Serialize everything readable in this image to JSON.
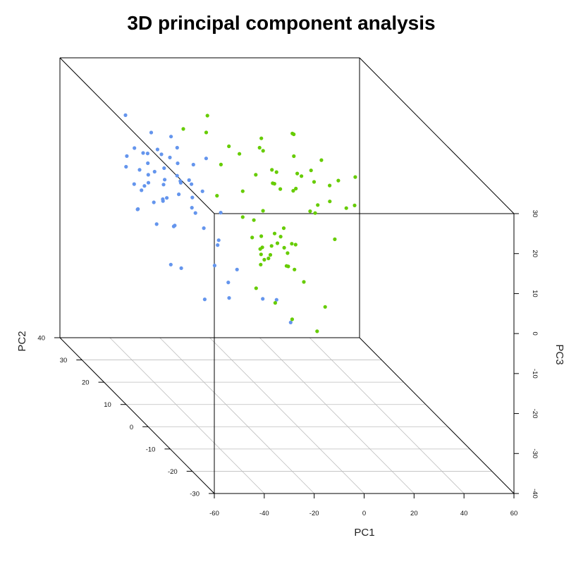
{
  "chart_data": {
    "type": "scatter",
    "title": "3D principal component analysis",
    "axes": {
      "x": {
        "label": "PC1",
        "range": [
          -60,
          60
        ],
        "ticks": [
          -60,
          -40,
          -20,
          0,
          20,
          40,
          60
        ],
        "tick_labels": [
          "-60",
          "-40",
          "-20",
          "0",
          "20",
          "40",
          "60"
        ]
      },
      "y": {
        "label": "PC2",
        "range": [
          -30,
          40
        ],
        "ticks": [
          -30,
          -20,
          -10,
          0,
          10,
          20,
          30,
          40
        ],
        "tick_labels": [
          "-30",
          "-20",
          "-10",
          "0",
          "10",
          "20",
          "30",
          "40"
        ]
      },
      "z": {
        "label": "PC3",
        "range": [
          -40,
          30
        ],
        "ticks": [
          -40,
          -30,
          -20,
          -10,
          0,
          10,
          20,
          30
        ],
        "tick_labels": [
          "-40",
          "-30",
          "-20",
          "-10",
          "0",
          "10",
          "20",
          "30"
        ]
      }
    },
    "grid": true,
    "series": [
      {
        "color": "#6495ED",
        "points": [
          {
            "x": -45,
            "y": 10,
            "z": 15
          },
          {
            "x": -43,
            "y": 12,
            "z": 18
          },
          {
            "x": -47,
            "y": 8,
            "z": 12
          },
          {
            "x": -44,
            "y": 5,
            "z": 20
          },
          {
            "x": -41,
            "y": 14,
            "z": 14
          },
          {
            "x": -48,
            "y": 11,
            "z": 10
          },
          {
            "x": -46,
            "y": 16,
            "z": 17
          },
          {
            "x": -42,
            "y": 7,
            "z": 22
          },
          {
            "x": -39,
            "y": 9,
            "z": 16
          },
          {
            "x": -50,
            "y": 13,
            "z": 13
          },
          {
            "x": -44,
            "y": 18,
            "z": 11
          },
          {
            "x": -40,
            "y": 3,
            "z": 19
          },
          {
            "x": -46,
            "y": 6,
            "z": 24
          },
          {
            "x": -43,
            "y": 15,
            "z": 21
          },
          {
            "x": -38,
            "y": 11,
            "z": 12
          },
          {
            "x": -49,
            "y": 4,
            "z": 15
          },
          {
            "x": -45,
            "y": 20,
            "z": 8
          },
          {
            "x": -41,
            "y": 1,
            "z": 25
          },
          {
            "x": -47,
            "y": 17,
            "z": 19
          },
          {
            "x": -37,
            "y": 6,
            "z": 14
          },
          {
            "x": -52,
            "y": 9,
            "z": 18
          },
          {
            "x": -44,
            "y": 22,
            "z": 12
          },
          {
            "x": -40,
            "y": -2,
            "z": 20
          },
          {
            "x": -48,
            "y": 2,
            "z": 9
          },
          {
            "x": -42,
            "y": 19,
            "z": 23
          },
          {
            "x": -46,
            "y": -4,
            "z": 17
          },
          {
            "x": -39,
            "y": 24,
            "z": 15
          },
          {
            "x": -51,
            "y": 15,
            "z": 6
          },
          {
            "x": -43,
            "y": -6,
            "z": 13
          },
          {
            "x": -36,
            "y": 14,
            "z": 22
          },
          {
            "x": -53,
            "y": 5,
            "z": 21
          },
          {
            "x": -45,
            "y": 27,
            "z": 10
          },
          {
            "x": -38,
            "y": -8,
            "z": 18
          },
          {
            "x": -50,
            "y": 21,
            "z": 16
          },
          {
            "x": -41,
            "y": -10,
            "z": 11
          },
          {
            "x": -34,
            "y": 8,
            "z": 9
          },
          {
            "x": -55,
            "y": 12,
            "z": 14
          },
          {
            "x": -47,
            "y": 25,
            "z": 24
          },
          {
            "x": -35,
            "y": 2,
            "z": 26
          },
          {
            "x": -44,
            "y": -12,
            "z": 7
          },
          {
            "x": -40,
            "y": 16,
            "z": 8
          },
          {
            "x": -48,
            "y": -1,
            "z": 22
          },
          {
            "x": -42,
            "y": 10,
            "z": 27
          },
          {
            "x": -46,
            "y": 12,
            "z": 4
          },
          {
            "x": -37,
            "y": 20,
            "z": 17
          },
          {
            "x": -52,
            "y": -3,
            "z": 12
          },
          {
            "x": -33,
            "y": 12,
            "z": 15
          },
          {
            "x": -45,
            "y": -15,
            "z": 15
          },
          {
            "x": -57,
            "y": 8,
            "z": 10
          },
          {
            "x": -39,
            "y": 30,
            "z": 13
          },
          {
            "x": -35,
            "y": -12,
            "z": 6
          },
          {
            "x": -30,
            "y": -18,
            "z": 2
          },
          {
            "x": -28,
            "y": -22,
            "z": 4
          },
          {
            "x": -58,
            "y": -8,
            "z": 5
          },
          {
            "x": -60,
            "y": -15,
            "z": 8
          },
          {
            "x": -55,
            "y": -20,
            "z": 3
          },
          {
            "x": -25,
            "y": -25,
            "z": 0
          },
          {
            "x": -32,
            "y": -5,
            "z": -5
          },
          {
            "x": -50,
            "y": -25,
            "z": 10
          }
        ]
      },
      {
        "color": "#66CC00",
        "points": [
          {
            "x": -15,
            "y": -5,
            "z": 8
          },
          {
            "x": -12,
            "y": -3,
            "z": 10
          },
          {
            "x": -18,
            "y": -7,
            "z": 6
          },
          {
            "x": -14,
            "y": -8,
            "z": 12
          },
          {
            "x": -10,
            "y": -2,
            "z": 7
          },
          {
            "x": -17,
            "y": -4,
            "z": 4
          },
          {
            "x": -13,
            "y": -10,
            "z": 9
          },
          {
            "x": -20,
            "y": -6,
            "z": 11
          },
          {
            "x": -11,
            "y": -6,
            "z": 13
          },
          {
            "x": -16,
            "y": -1,
            "z": 5
          },
          {
            "x": -19,
            "y": -9,
            "z": 8
          },
          {
            "x": -9,
            "y": -5,
            "z": 3
          },
          {
            "x": -14,
            "y": 0,
            "z": 14
          },
          {
            "x": -21,
            "y": -3,
            "z": 9
          },
          {
            "x": -12,
            "y": -12,
            "z": 6
          },
          {
            "x": -8,
            "y": -8,
            "z": 10
          },
          {
            "x": -17,
            "y": -13,
            "z": 12
          },
          {
            "x": -22,
            "y": -8,
            "z": 5
          },
          {
            "x": -15,
            "y": 3,
            "z": 10
          },
          {
            "x": -10,
            "y": -14,
            "z": 4
          },
          {
            "x": -23,
            "y": -1,
            "z": 13
          },
          {
            "x": -13,
            "y": 2,
            "z": 2
          },
          {
            "x": -6,
            "y": -4,
            "z": 8
          },
          {
            "x": -18,
            "y": -16,
            "z": 9
          },
          {
            "x": -24,
            "y": -11,
            "z": 11
          },
          {
            "x": -5,
            "y": 5,
            "z": 18
          },
          {
            "x": 0,
            "y": 8,
            "z": 15
          },
          {
            "x": 5,
            "y": 6,
            "z": 20
          },
          {
            "x": 2,
            "y": 12,
            "z": 17
          },
          {
            "x": 8,
            "y": 10,
            "z": 14
          },
          {
            "x": -3,
            "y": 14,
            "z": 22
          },
          {
            "x": 10,
            "y": 4,
            "z": 19
          },
          {
            "x": 4,
            "y": 16,
            "z": 12
          },
          {
            "x": -6,
            "y": 9,
            "z": 24
          },
          {
            "x": 12,
            "y": 12,
            "z": 16
          },
          {
            "x": 7,
            "y": 2,
            "z": 23
          },
          {
            "x": -1,
            "y": 18,
            "z": 13
          },
          {
            "x": 15,
            "y": 8,
            "z": 11
          },
          {
            "x": 3,
            "y": 20,
            "z": 21
          },
          {
            "x": 11,
            "y": 15,
            "z": 25
          },
          {
            "x": -8,
            "y": 16,
            "z": 10
          },
          {
            "x": 18,
            "y": 6,
            "z": 17
          },
          {
            "x": 6,
            "y": -1,
            "z": 14
          },
          {
            "x": 14,
            "y": 18,
            "z": 9
          },
          {
            "x": 1,
            "y": 3,
            "z": 26
          },
          {
            "x": 20,
            "y": 12,
            "z": 20
          },
          {
            "x": -4,
            "y": 22,
            "z": 16
          },
          {
            "x": 9,
            "y": 22,
            "z": 12
          },
          {
            "x": 22,
            "y": 3,
            "z": 13
          },
          {
            "x": 16,
            "y": 20,
            "z": 22
          },
          {
            "x": 25,
            "y": 10,
            "z": 16
          },
          {
            "x": -10,
            "y": 20,
            "z": 19
          },
          {
            "x": 13,
            "y": -2,
            "z": 8
          },
          {
            "x": 28,
            "y": 6,
            "z": 12
          },
          {
            "x": 19,
            "y": 16,
            "z": 5
          },
          {
            "x": -12,
            "y": 28,
            "z": 18
          },
          {
            "x": -15,
            "y": 35,
            "z": 15
          },
          {
            "x": -8,
            "y": 32,
            "z": 20
          },
          {
            "x": 30,
            "y": 8,
            "z": 18
          },
          {
            "x": 26,
            "y": 15,
            "z": 8
          },
          {
            "x": -20,
            "y": -20,
            "z": -2
          },
          {
            "x": -25,
            "y": -18,
            "z": 1
          },
          {
            "x": -10,
            "y": -20,
            "z": -5
          },
          {
            "x": -30,
            "y": -15,
            "z": 3
          },
          {
            "x": -28,
            "y": 5,
            "z": 15
          },
          {
            "x": -22,
            "y": 10,
            "z": 20
          },
          {
            "x": -5,
            "y": -18,
            "z": 0
          }
        ]
      }
    ]
  }
}
